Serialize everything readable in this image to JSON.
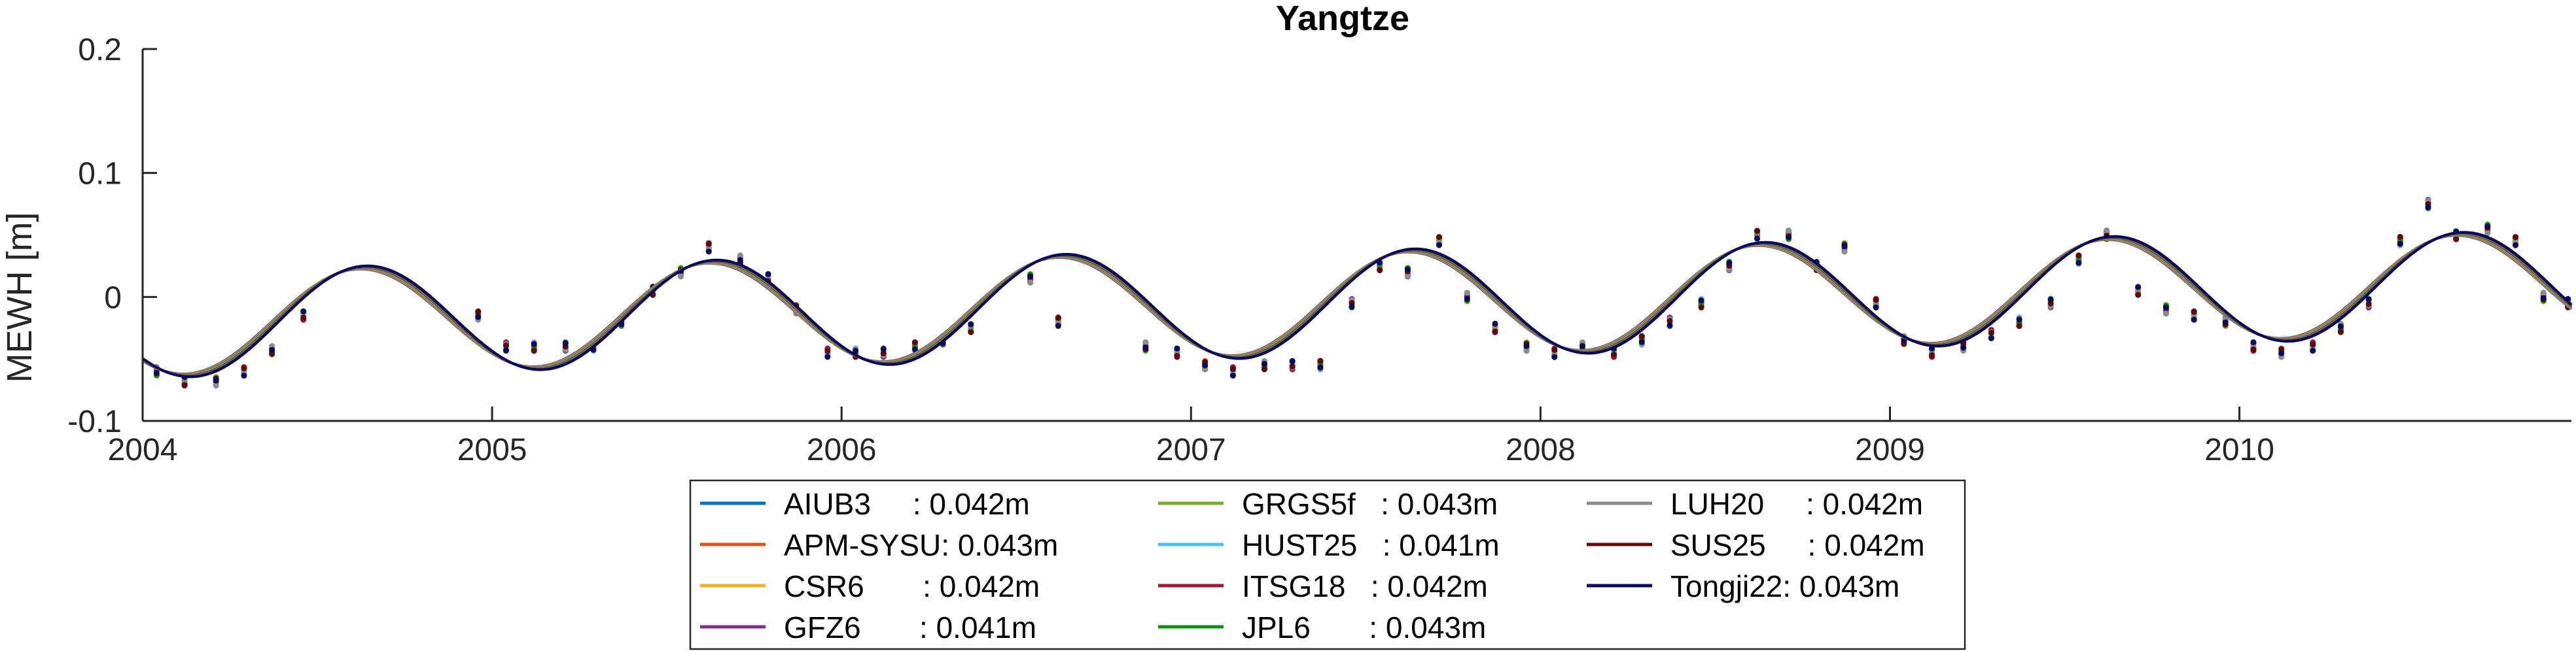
{
  "chart_data": {
    "type": "line",
    "title": "Yangtze",
    "xlabel": "",
    "ylabel": "MEWH [m]",
    "xlim": [
      2004.0,
      2010.95
    ],
    "ylim": [
      -0.1,
      0.2
    ],
    "xticks": [
      2004,
      2005,
      2006,
      2007,
      2008,
      2009,
      2010
    ],
    "xtick_labels": [
      "2004",
      "2005",
      "2006",
      "2007",
      "2008",
      "2009",
      "2010"
    ],
    "yticks": [
      -0.1,
      0,
      0.1,
      0.2
    ],
    "ytick_labels": [
      "-0.1",
      "0",
      "0.1",
      "0.2"
    ],
    "grid": false,
    "legend_placement": "bottom-center",
    "fit_curve": {
      "mean_by_year": [
        {
          "x": 2004.0,
          "y": -0.022
        },
        {
          "x": 2005.0,
          "y": -0.016
        },
        {
          "x": 2006.0,
          "y": -0.012
        },
        {
          "x": 2007.0,
          "y": -0.007
        },
        {
          "x": 2008.0,
          "y": -0.003
        },
        {
          "x": 2009.0,
          "y": 0.003
        },
        {
          "x": 2010.0,
          "y": 0.007
        },
        {
          "x": 2011.0,
          "y": 0.01
        }
      ],
      "annual_amplitude": 0.042,
      "peak_fraction_of_year": 0.63
    },
    "series": [
      {
        "name": "AIUB3",
        "rms_label": "AIUB3     : 0.042m",
        "rms_m": 0.042,
        "color": "#0072BD"
      },
      {
        "name": "APM-SYSU",
        "rms_label": "APM-SYSU: 0.043m",
        "rms_m": 0.043,
        "color": "#D95319"
      },
      {
        "name": "CSR6",
        "rms_label": "CSR6       : 0.042m",
        "rms_m": 0.042,
        "color": "#EDB120"
      },
      {
        "name": "GFZ6",
        "rms_label": "GFZ6       : 0.041m",
        "rms_m": 0.041,
        "color": "#7E2F8E"
      },
      {
        "name": "GRGS5f",
        "rms_label": "GRGS5f   : 0.043m",
        "rms_m": 0.043,
        "color": "#77AC30"
      },
      {
        "name": "HUST25",
        "rms_label": "HUST25   : 0.041m",
        "rms_m": 0.041,
        "color": "#4DBEEE"
      },
      {
        "name": "ITSG18",
        "rms_label": "ITSG18   : 0.042m",
        "rms_m": 0.042,
        "color": "#A2142F"
      },
      {
        "name": "JPL6",
        "rms_label": "JPL6       : 0.043m",
        "rms_m": 0.043,
        "color": "#138A13"
      },
      {
        "name": "LUH20",
        "rms_label": "LUH20     : 0.042m",
        "rms_m": 0.042,
        "color": "#8C8C8C"
      },
      {
        "name": "SUS25",
        "rms_label": "SUS25     : 0.042m",
        "rms_m": 0.042,
        "color": "#5C0A0A"
      },
      {
        "name": "Tongji22",
        "rms_label": "Tongji22: 0.043m",
        "rms_m": 0.043,
        "color": "#0A0A5C"
      }
    ],
    "monthly_points": [
      {
        "x": 2004.04,
        "y": -0.06
      },
      {
        "x": 2004.12,
        "y": -0.068
      },
      {
        "x": 2004.21,
        "y": -0.068
      },
      {
        "x": 2004.29,
        "y": -0.06
      },
      {
        "x": 2004.37,
        "y": -0.043
      },
      {
        "x": 2004.46,
        "y": -0.015
      },
      {
        "x": 2004.96,
        "y": -0.015
      },
      {
        "x": 2005.04,
        "y": -0.04
      },
      {
        "x": 2005.12,
        "y": -0.04
      },
      {
        "x": 2005.21,
        "y": -0.04
      },
      {
        "x": 2005.29,
        "y": -0.04
      },
      {
        "x": 2005.37,
        "y": -0.02
      },
      {
        "x": 2005.46,
        "y": 0.005
      },
      {
        "x": 2005.54,
        "y": 0.02
      },
      {
        "x": 2005.62,
        "y": 0.04
      },
      {
        "x": 2005.71,
        "y": 0.03
      },
      {
        "x": 2005.79,
        "y": 0.015
      },
      {
        "x": 2005.87,
        "y": -0.01
      },
      {
        "x": 2005.96,
        "y": -0.045
      },
      {
        "x": 2006.04,
        "y": -0.045
      },
      {
        "x": 2006.12,
        "y": -0.045
      },
      {
        "x": 2006.21,
        "y": -0.04
      },
      {
        "x": 2006.29,
        "y": -0.035
      },
      {
        "x": 2006.37,
        "y": -0.025
      },
      {
        "x": 2006.54,
        "y": 0.015
      },
      {
        "x": 2006.62,
        "y": -0.02
      },
      {
        "x": 2006.87,
        "y": -0.04
      },
      {
        "x": 2006.96,
        "y": -0.045
      },
      {
        "x": 2007.04,
        "y": -0.055
      },
      {
        "x": 2007.12,
        "y": -0.06
      },
      {
        "x": 2007.21,
        "y": -0.055
      },
      {
        "x": 2007.29,
        "y": -0.055
      },
      {
        "x": 2007.37,
        "y": -0.055
      },
      {
        "x": 2007.46,
        "y": -0.005
      },
      {
        "x": 2007.54,
        "y": 0.025
      },
      {
        "x": 2007.62,
        "y": 0.02
      },
      {
        "x": 2007.71,
        "y": 0.045
      },
      {
        "x": 2007.79,
        "y": 0.0
      },
      {
        "x": 2007.87,
        "y": -0.025
      },
      {
        "x": 2007.96,
        "y": -0.04
      },
      {
        "x": 2008.04,
        "y": -0.045
      },
      {
        "x": 2008.12,
        "y": -0.04
      },
      {
        "x": 2008.21,
        "y": -0.045
      },
      {
        "x": 2008.29,
        "y": -0.035
      },
      {
        "x": 2008.37,
        "y": -0.02
      },
      {
        "x": 2008.46,
        "y": -0.005
      },
      {
        "x": 2008.54,
        "y": 0.025
      },
      {
        "x": 2008.62,
        "y": 0.05
      },
      {
        "x": 2008.71,
        "y": 0.05
      },
      {
        "x": 2008.79,
        "y": 0.025
      },
      {
        "x": 2008.87,
        "y": 0.04
      },
      {
        "x": 2008.96,
        "y": -0.005
      },
      {
        "x": 2009.04,
        "y": -0.035
      },
      {
        "x": 2009.12,
        "y": -0.045
      },
      {
        "x": 2009.21,
        "y": -0.04
      },
      {
        "x": 2009.29,
        "y": -0.03
      },
      {
        "x": 2009.37,
        "y": -0.02
      },
      {
        "x": 2009.46,
        "y": -0.005
      },
      {
        "x": 2009.54,
        "y": 0.03
      },
      {
        "x": 2009.62,
        "y": 0.05
      },
      {
        "x": 2009.71,
        "y": 0.005
      },
      {
        "x": 2009.79,
        "y": -0.01
      },
      {
        "x": 2009.87,
        "y": -0.015
      },
      {
        "x": 2009.96,
        "y": -0.02
      },
      {
        "x": 2010.04,
        "y": -0.04
      },
      {
        "x": 2010.12,
        "y": -0.045
      },
      {
        "x": 2010.21,
        "y": -0.04
      },
      {
        "x": 2010.29,
        "y": -0.025
      },
      {
        "x": 2010.37,
        "y": -0.005
      },
      {
        "x": 2010.46,
        "y": 0.045
      },
      {
        "x": 2010.54,
        "y": 0.075
      },
      {
        "x": 2010.62,
        "y": 0.05
      },
      {
        "x": 2010.71,
        "y": 0.055
      },
      {
        "x": 2010.79,
        "y": 0.045
      },
      {
        "x": 2010.87,
        "y": 0.0
      },
      {
        "x": 2010.94,
        "y": -0.005
      }
    ]
  }
}
